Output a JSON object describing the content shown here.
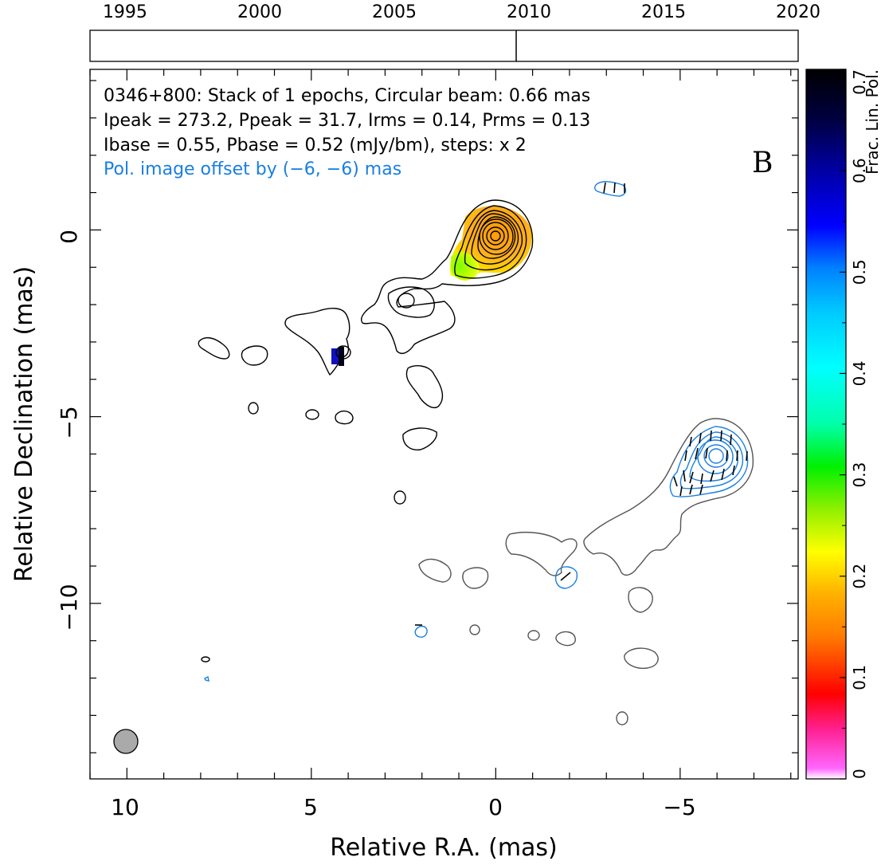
{
  "timeline": {
    "years": [
      "1995",
      "2000",
      "2005",
      "2010",
      "2015",
      "2020"
    ],
    "year_range": [
      1993.7,
      2020.0
    ],
    "epoch_marker": 2009.5
  },
  "panel_letter": "B",
  "info": {
    "line1": "0346+800: Stack of 1 epochs, Circular beam: 0.66 mas",
    "line2": "Ipeak = 273.2, Ppeak = 31.7, Irms = 0.14, Prms = 0.13",
    "line3": "Ibase = 0.55, Pbase = 0.52 (mJy/bm), steps: x 2",
    "line4": "Pol. image offset by (−6, −6) mas",
    "line4_color": "#1a7fe0"
  },
  "axes": {
    "xlabel": "Relative R.A. (mas)",
    "ylabel": "Relative Declination (mas)",
    "xticks": [
      "10",
      "5",
      "0",
      "−5"
    ],
    "yticks": [
      "0",
      "−5",
      "−10"
    ]
  },
  "colorbar": {
    "label": "Frac. Lin. Pol.",
    "ticks": [
      "0",
      "0.1",
      "0.2",
      "0.3",
      "0.4",
      "0.5",
      "0.6",
      "0.7"
    ],
    "range": [
      0,
      0.7
    ]
  },
  "chart_data": {
    "type": "heatmap",
    "title": "0346+800: Stack of 1 epochs, Circular beam: 0.66 mas",
    "xlabel": "Relative R.A. (mas)",
    "ylabel": "Relative Declination (mas)",
    "xlim": [
      11.0,
      -8.2
    ],
    "ylim": [
      -14.7,
      4.3
    ],
    "colorbar_range": [
      0,
      0.7
    ],
    "beam_mas": 0.66,
    "core": {
      "ra": 0.0,
      "dec": 0.0,
      "ipeak_mJy_per_beam": 273.2
    },
    "polarized_core_offset_mas": [
      -6,
      -6
    ],
    "frac_pol_regions": [
      {
        "ra": 0.0,
        "dec": 0.0,
        "value": 0.12
      },
      {
        "ra": 0.6,
        "dec": -0.6,
        "value": 0.17
      },
      {
        "ra": 1.1,
        "dec": -0.8,
        "value": 0.22
      },
      {
        "ra": 4.2,
        "dec": -3.3,
        "value": 0.55
      }
    ],
    "colors": {
      "total_intensity_contours": "#000000",
      "offset_contours": "#555555",
      "polarized_contours": "#1a7fe0"
    }
  }
}
